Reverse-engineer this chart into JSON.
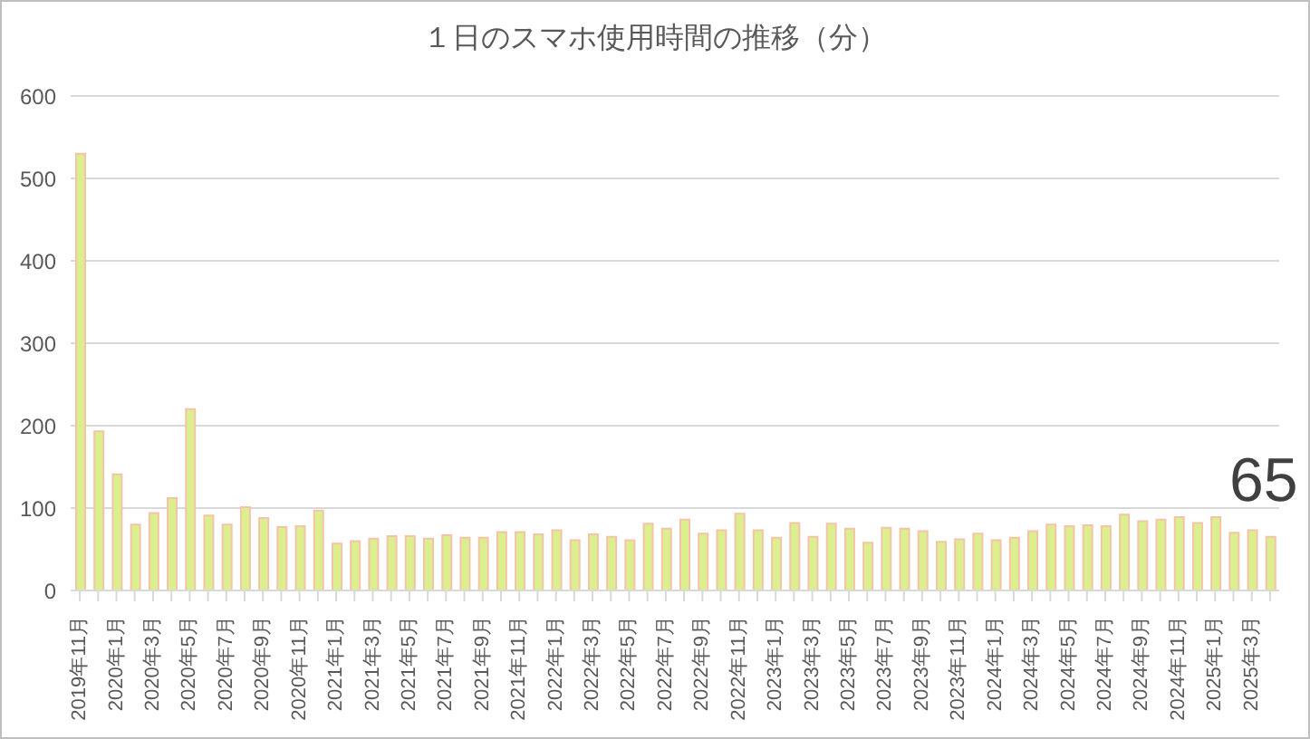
{
  "chart_data": {
    "type": "bar",
    "title": "１日のスマホ使用時間の推移（分）",
    "categories": [
      "2019年11月",
      null,
      "2020年1月",
      null,
      "2020年3月",
      null,
      "2020年5月",
      null,
      "2020年7月",
      null,
      "2020年9月",
      null,
      "2020年11月",
      null,
      "2021年1月",
      null,
      "2021年3月",
      null,
      "2021年5月",
      null,
      "2021年7月",
      null,
      "2021年9月",
      null,
      "2021年11月",
      null,
      "2022年1月",
      null,
      "2022年3月",
      null,
      "2022年5月",
      null,
      "2022年7月",
      null,
      "2022年9月",
      null,
      "2022年11月",
      null,
      "2023年1月",
      null,
      "2023年3月",
      null,
      "2023年5月",
      null,
      "2023年7月",
      null,
      "2023年9月",
      null,
      "2023年11月",
      null,
      "2024年1月",
      null,
      "2024年3月",
      null,
      "2024年5月",
      null,
      "2024年7月",
      null,
      "2024年9月",
      null,
      "2024年11月",
      null,
      "2025年1月",
      null,
      "2025年3月",
      null
    ],
    "values": [
      530,
      193,
      141,
      80,
      94,
      112,
      220,
      91,
      80,
      101,
      88,
      77,
      78,
      97,
      57,
      60,
      63,
      66,
      66,
      63,
      67,
      64,
      64,
      71,
      71,
      68,
      73,
      61,
      68,
      65,
      61,
      81,
      75,
      86,
      69,
      73,
      93,
      73,
      64,
      82,
      65,
      81,
      75,
      58,
      76,
      75,
      72,
      59,
      62,
      69,
      61,
      64,
      72,
      80,
      78,
      79,
      78,
      92,
      84,
      86,
      89,
      82,
      89,
      70,
      73,
      65
    ],
    "value_labels": [
      null,
      null,
      null,
      null,
      null,
      null,
      null,
      null,
      null,
      null,
      null,
      null,
      null,
      null,
      null,
      null,
      null,
      null,
      null,
      null,
      null,
      null,
      null,
      null,
      null,
      null,
      null,
      null,
      null,
      null,
      null,
      null,
      null,
      null,
      null,
      null,
      null,
      null,
      null,
      null,
      null,
      null,
      null,
      null,
      null,
      null,
      null,
      null,
      null,
      null,
      null,
      null,
      null,
      null,
      null,
      null,
      null,
      null,
      null,
      null,
      null,
      null,
      null,
      null,
      null,
      "65"
    ],
    "color": "#dcef8e",
    "ylim": [
      0,
      600
    ],
    "yticks": [
      0,
      100,
      200,
      300,
      400,
      500,
      600
    ],
    "grid": "y"
  }
}
